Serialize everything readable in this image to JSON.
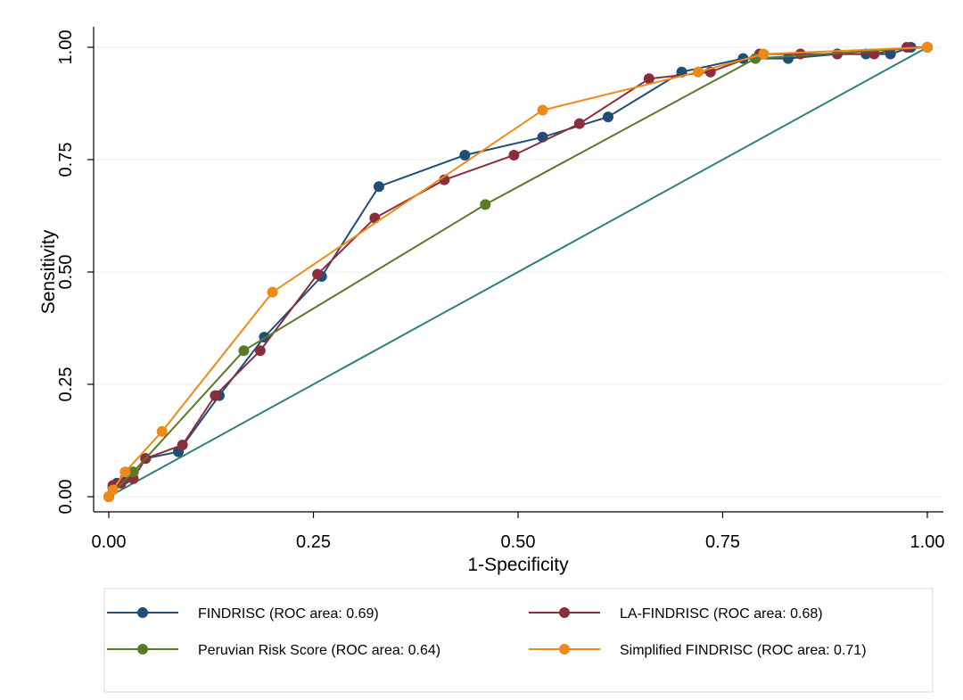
{
  "chart_data": {
    "type": "line",
    "xlabel": "1-Specificity",
    "ylabel": "Sensitivity",
    "xlim": [
      0,
      1
    ],
    "ylim": [
      0,
      1
    ],
    "x_ticks": [
      "0.00",
      "0.25",
      "0.50",
      "0.75",
      "1.00"
    ],
    "y_ticks": [
      "0.00",
      "0.25",
      "0.50",
      "0.75",
      "1.00"
    ],
    "grid": true,
    "legend_position": "bottom",
    "reference_line": {
      "x": [
        0,
        1
      ],
      "y": [
        0,
        1
      ],
      "color": "#2e7f7f"
    },
    "series": [
      {
        "name": "FINDRISC (ROC area: 0.69)",
        "color": "#1f4e79",
        "x": [
          0.0,
          0.005,
          0.01,
          0.02,
          0.03,
          0.045,
          0.085,
          0.135,
          0.19,
          0.26,
          0.33,
          0.435,
          0.53,
          0.61,
          0.7,
          0.775,
          0.83,
          0.89,
          0.925,
          0.955,
          0.98,
          1.0
        ],
        "y": [
          0.0,
          0.02,
          0.03,
          0.04,
          0.055,
          0.085,
          0.1,
          0.225,
          0.355,
          0.49,
          0.69,
          0.76,
          0.8,
          0.845,
          0.945,
          0.975,
          0.975,
          0.985,
          0.985,
          0.985,
          1.0,
          1.0
        ]
      },
      {
        "name": "LA-FINDRISC (ROC area: 0.68)",
        "color": "#8b2e3c",
        "x": [
          0.0,
          0.005,
          0.015,
          0.03,
          0.045,
          0.09,
          0.13,
          0.185,
          0.255,
          0.325,
          0.41,
          0.495,
          0.575,
          0.66,
          0.735,
          0.795,
          0.845,
          0.89,
          0.935,
          0.975,
          1.0
        ],
        "y": [
          0.0,
          0.025,
          0.03,
          0.04,
          0.085,
          0.115,
          0.225,
          0.325,
          0.495,
          0.62,
          0.705,
          0.76,
          0.83,
          0.93,
          0.945,
          0.985,
          0.985,
          0.985,
          0.985,
          1.0,
          1.0
        ]
      },
      {
        "name": "Peruvian Risk Score (ROC area: 0.64)",
        "color": "#5a7a2a",
        "x": [
          0.0,
          0.03,
          0.165,
          0.46,
          0.79,
          1.0
        ],
        "y": [
          0.0,
          0.055,
          0.325,
          0.65,
          0.975,
          1.0
        ],
        "show_markers": [
          false,
          true,
          true,
          true,
          true,
          false
        ]
      },
      {
        "name": "Simplified FINDRISC (ROC area: 0.71)",
        "color": "#ee8a1a",
        "x": [
          0.0,
          0.005,
          0.02,
          0.065,
          0.2,
          0.53,
          0.72,
          0.8,
          1.0
        ],
        "y": [
          0.0,
          0.015,
          0.055,
          0.145,
          0.455,
          0.86,
          0.945,
          0.985,
          1.0
        ]
      }
    ]
  }
}
